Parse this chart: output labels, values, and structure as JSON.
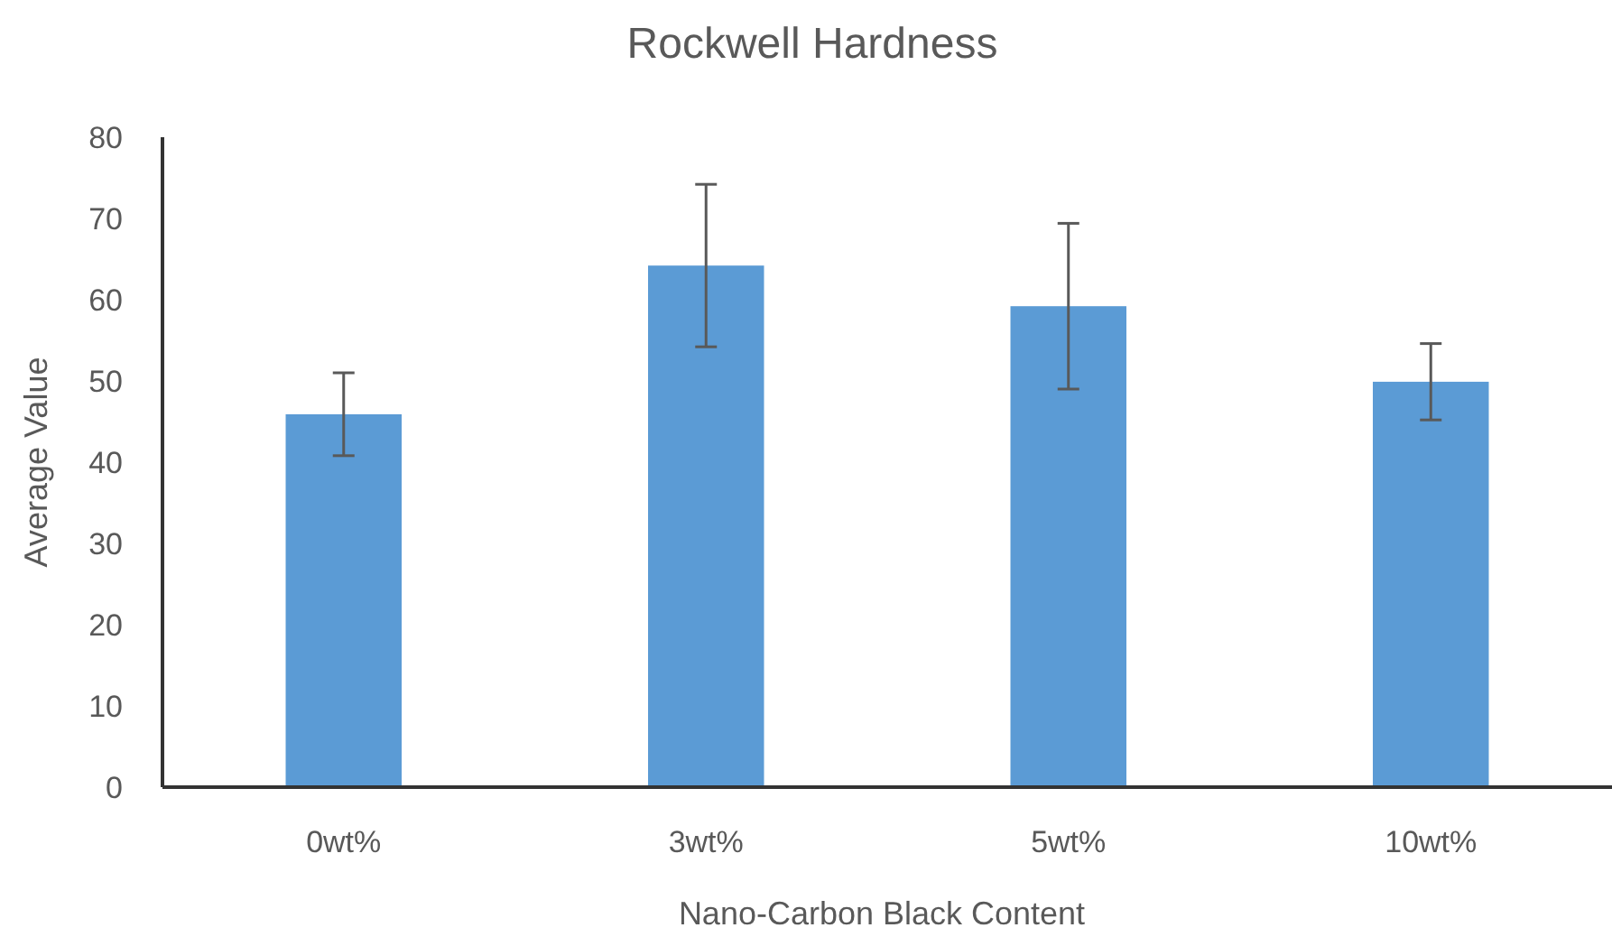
{
  "chart_data": {
    "type": "bar",
    "title": "Rockwell Hardness",
    "xlabel": "Nano-Carbon Black Content",
    "ylabel": "Average Value",
    "categories": [
      "0wt%",
      "3wt%",
      "5wt%",
      "10wt%"
    ],
    "values": [
      45.9,
      64.2,
      59.2,
      49.9
    ],
    "errors": [
      5.1,
      10,
      10.2,
      4.7
    ],
    "color": "#5b9bd5",
    "ylim": [
      0,
      80
    ],
    "yticks": [
      0,
      10,
      20,
      30,
      40,
      50,
      60,
      70,
      80
    ],
    "grid": false
  }
}
